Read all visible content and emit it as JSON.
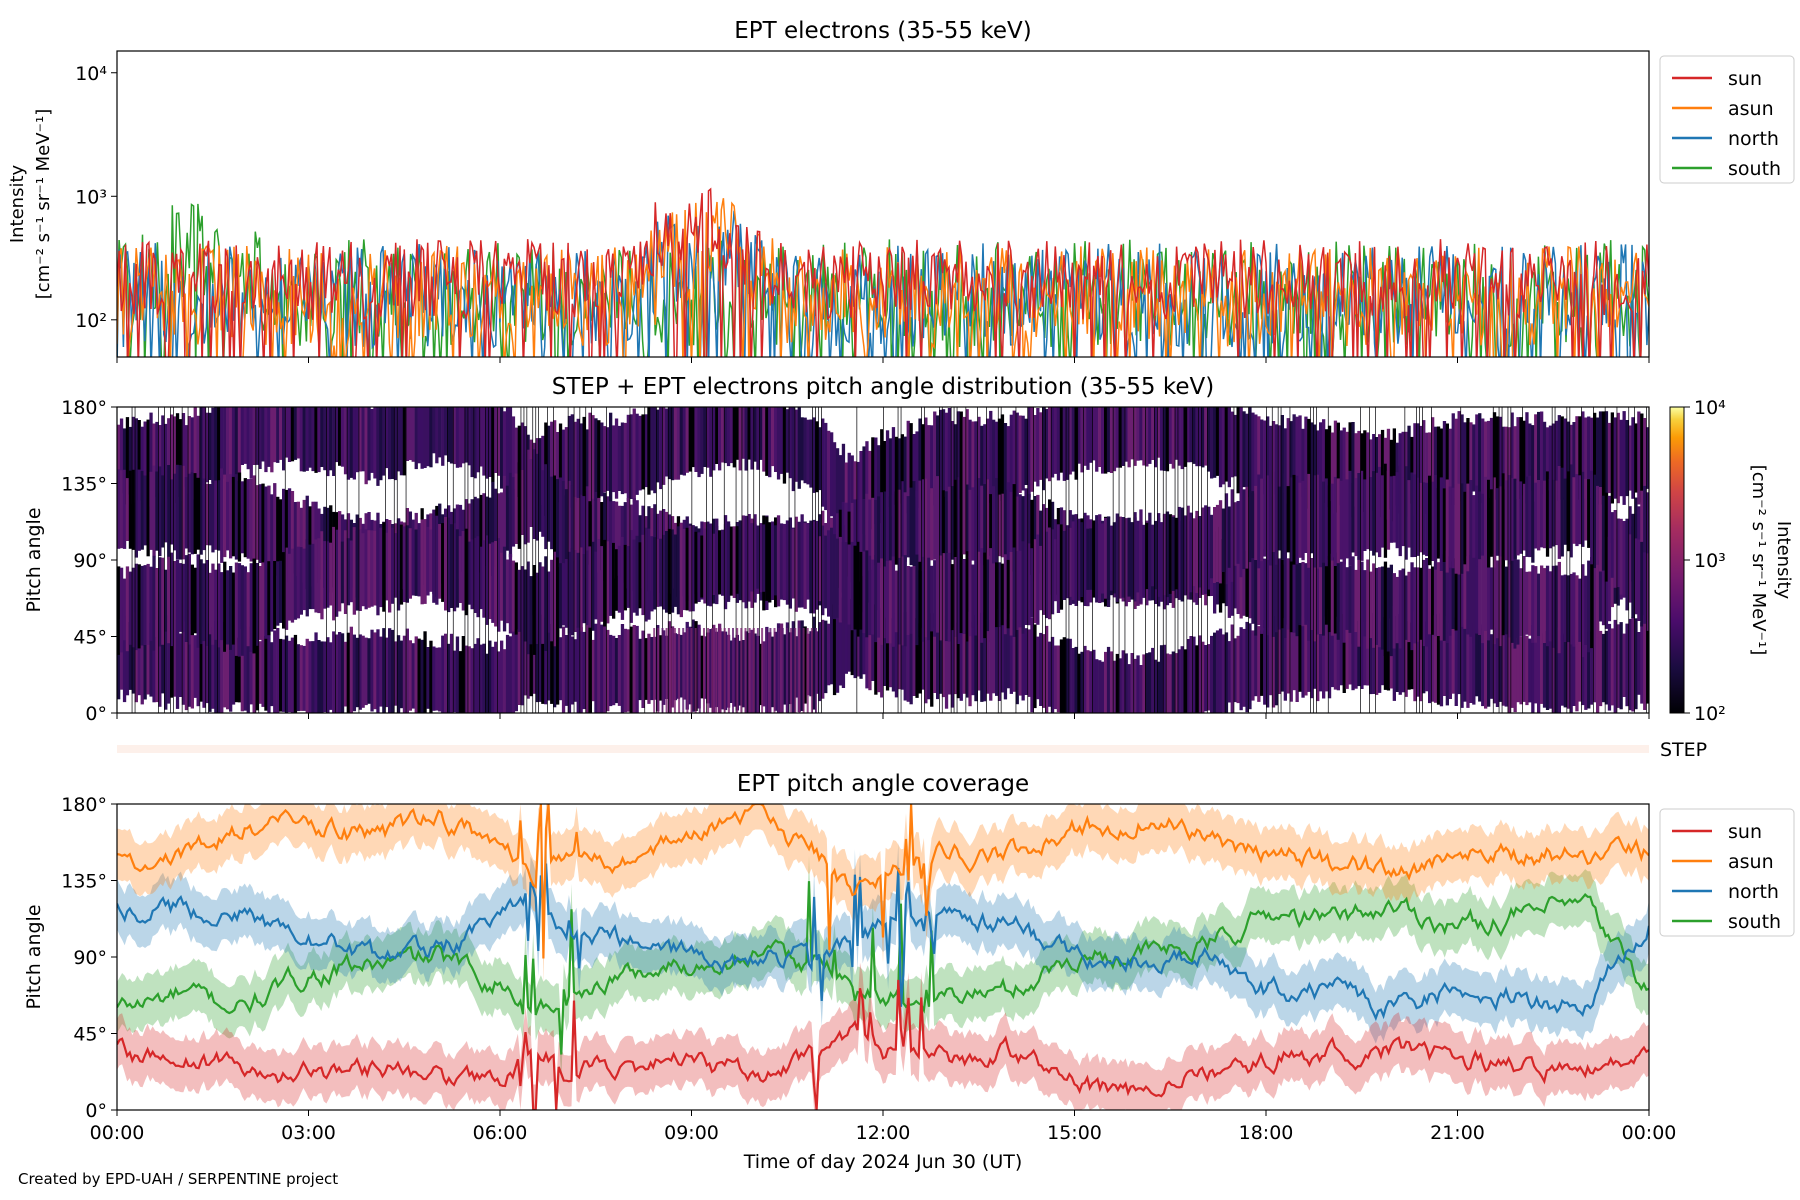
{
  "footer": "Created by EPD-UAH / SERPENTINE project",
  "colors": {
    "sun": "#d62728",
    "asun": "#ff7f0e",
    "north": "#1f77b4",
    "south": "#2ca02c"
  },
  "chart_data": [
    {
      "type": "line",
      "title": "EPT electrons (35-55 keV)",
      "ylabel_line1": "Intensity",
      "ylabel_line2": "[cm⁻² s⁻¹ sr⁻¹ MeV⁻¹]",
      "yscale": "log",
      "ylim": [
        50,
        15000
      ],
      "yticks": [
        "10²",
        "10³",
        "10⁴"
      ],
      "xlim_hours": [
        0,
        24
      ],
      "legend_placement": "outside-right-top",
      "series": [
        {
          "name": "sun",
          "key": "sun",
          "typical": [
            100,
            450
          ],
          "peak": {
            "hour": 9.0,
            "value": 1050
          }
        },
        {
          "name": "asun",
          "key": "asun",
          "typical": [
            60,
            400
          ],
          "peak": {
            "hour": 9.3,
            "value": 800
          }
        },
        {
          "name": "north",
          "key": "north",
          "typical": [
            60,
            420
          ],
          "peak": {
            "hour": 9.2,
            "value": 750
          }
        },
        {
          "name": "south",
          "key": "south",
          "typical": [
            60,
            450
          ],
          "peak": {
            "hour": 1.2,
            "value": 650
          }
        }
      ]
    },
    {
      "type": "heatmap",
      "title": "STEP + EPT electrons pitch angle distribution (35-55 keV)",
      "ylabel": "Pitch angle",
      "yticks": [
        "0°",
        "45°",
        "90°",
        "135°",
        "180°"
      ],
      "ylim": [
        0,
        180
      ],
      "xlim_hours": [
        0,
        24
      ],
      "colorbar": {
        "label_line1": "Intensity",
        "label_line2": "[cm⁻² s⁻¹ sr⁻¹ MeV⁻¹]",
        "scale": "log",
        "range": [
          100,
          10000
        ],
        "ticks": [
          "10²",
          "10³",
          "10⁴"
        ],
        "colormap": "inferno"
      },
      "typical_intensity": [
        150,
        400
      ]
    },
    {
      "type": "strip",
      "label": "STEP",
      "color": "#fdf0ea"
    },
    {
      "type": "line",
      "title": "EPT pitch angle coverage",
      "ylabel": "Pitch angle",
      "ylim": [
        0,
        180
      ],
      "yticks": [
        "0°",
        "45°",
        "90°",
        "135°",
        "180°"
      ],
      "xlabel": "Time of day 2024 Jun 30 (UT)",
      "xticks": [
        "00:00",
        "03:00",
        "06:00",
        "09:00",
        "12:00",
        "15:00",
        "18:00",
        "21:00",
        "00:00"
      ],
      "xlim_hours": [
        0,
        24
      ],
      "legend_placement": "outside-right-top",
      "band_halfwidth_deg": 15,
      "series": [
        {
          "name": "sun",
          "key": "sun",
          "hours": [
            0,
            1,
            2,
            3,
            4,
            5,
            6,
            6.5,
            7,
            8,
            9,
            10,
            11,
            11.5,
            12,
            13,
            14,
            15,
            16,
            17,
            18,
            19,
            20,
            21,
            22,
            23,
            24
          ],
          "values": [
            35,
            28,
            25,
            20,
            25,
            20,
            15,
            35,
            25,
            25,
            28,
            22,
            30,
            45,
            35,
            30,
            35,
            15,
            8,
            20,
            30,
            35,
            35,
            30,
            25,
            25,
            30
          ]
        },
        {
          "name": "asun",
          "key": "asun",
          "hours": [
            0,
            1,
            2,
            3,
            4,
            5,
            6,
            6.5,
            7,
            8,
            9,
            10,
            11,
            11.5,
            12,
            13,
            14,
            15,
            16,
            17,
            18,
            19,
            20,
            21,
            22,
            23,
            24
          ],
          "values": [
            148,
            150,
            165,
            170,
            160,
            172,
            160,
            140,
            148,
            150,
            165,
            170,
            150,
            125,
            140,
            152,
            150,
            165,
            172,
            165,
            150,
            145,
            140,
            150,
            150,
            150,
            150
          ]
        },
        {
          "name": "north",
          "key": "north",
          "hours": [
            0,
            1,
            2,
            3,
            4,
            5,
            6,
            6.5,
            7,
            8,
            9,
            10,
            11,
            11.5,
            12,
            13,
            14,
            15,
            16,
            17,
            18,
            19,
            20,
            21,
            22,
            23,
            24
          ],
          "values": [
            120,
            118,
            115,
            100,
            90,
            95,
            110,
            130,
            110,
            100,
            90,
            88,
            90,
            100,
            108,
            112,
            110,
            90,
            88,
            90,
            70,
            70,
            60,
            70,
            65,
            60,
            110
          ]
        },
        {
          "name": "south",
          "key": "south",
          "hours": [
            0,
            1,
            2,
            3,
            4,
            5,
            6,
            6.5,
            7,
            8,
            9,
            10,
            11,
            11.5,
            12,
            13,
            14,
            15,
            16,
            17,
            18,
            19,
            20,
            21,
            22,
            23,
            24
          ],
          "values": [
            60,
            68,
            60,
            80,
            85,
            90,
            75,
            60,
            70,
            80,
            85,
            92,
            85,
            75,
            65,
            68,
            70,
            90,
            92,
            95,
            115,
            112,
            120,
            108,
            115,
            120,
            70
          ]
        }
      ]
    }
  ]
}
